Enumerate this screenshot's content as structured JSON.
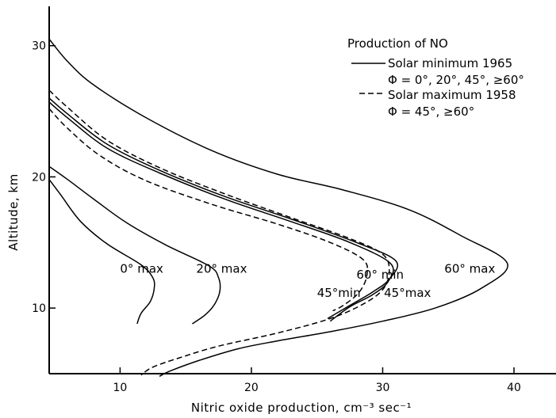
{
  "chart_data": {
    "type": "line",
    "title": "",
    "xlabel": "Nitric oxide production, cm⁻³ sec⁻¹",
    "ylabel": "Altitude,   km",
    "xlim": [
      4.6,
      43.2
    ],
    "ylim": [
      5,
      33
    ],
    "x_ticks": [
      10,
      20,
      30,
      40
    ],
    "y_ticks": [
      10,
      20,
      30
    ],
    "grid": false,
    "legend": {
      "position": "top-right",
      "title": "Production of NO",
      "entries": [
        {
          "style": "solid",
          "line1": "Solar minimum 1965",
          "line2": "Φ = 0°, 20°, 45°, ≥60°"
        },
        {
          "style": "dashed",
          "line1": "Solar maximum 1958",
          "line2": "Φ = 45°, ≥60°"
        }
      ]
    },
    "series": [
      {
        "id": "0max",
        "style": "solid",
        "label": "0° max",
        "label_at": [
          10.0,
          13.0
        ],
        "points": [
          [
            4.6,
            19.8
          ],
          [
            5.5,
            18.6
          ],
          [
            7.0,
            16.6
          ],
          [
            9.0,
            14.9
          ],
          [
            11.6,
            13.3
          ],
          [
            12.5,
            12.3
          ],
          [
            12.6,
            11.5
          ],
          [
            12.3,
            10.5
          ],
          [
            11.6,
            9.6
          ],
          [
            11.3,
            8.8
          ]
        ]
      },
      {
        "id": "20max",
        "style": "solid",
        "label": "20° max",
        "label_at": [
          15.8,
          13.0
        ],
        "points": [
          [
            4.6,
            20.8
          ],
          [
            6.0,
            19.8
          ],
          [
            8.0,
            18.3
          ],
          [
            10.5,
            16.5
          ],
          [
            13.5,
            14.8
          ],
          [
            16.8,
            13.2
          ],
          [
            17.5,
            12.3
          ],
          [
            17.6,
            11.3
          ],
          [
            17.2,
            10.3
          ],
          [
            16.5,
            9.5
          ],
          [
            15.5,
            8.8
          ]
        ]
      },
      {
        "id": "60min",
        "style": "solid",
        "label": "60° min",
        "label_at": [
          28.0,
          12.55
        ],
        "points": [
          [
            4.6,
            26.0
          ],
          [
            6.0,
            24.8
          ],
          [
            9.0,
            22.5
          ],
          [
            13.0,
            20.5
          ],
          [
            18.0,
            18.5
          ],
          [
            23.0,
            16.8
          ],
          [
            28.0,
            15.0
          ],
          [
            31.0,
            13.6
          ],
          [
            30.5,
            12.2
          ],
          [
            29.2,
            11.2
          ],
          [
            27.5,
            10.2
          ],
          [
            25.8,
            9.2
          ]
        ]
      },
      {
        "id": "45max",
        "style": "solid",
        "label": "45°max",
        "label_at": [
          30.1,
          11.15
        ],
        "points": [
          [
            4.6,
            25.7
          ],
          [
            6.0,
            24.5
          ],
          [
            9.0,
            22.2
          ],
          [
            13.0,
            20.3
          ],
          [
            18.0,
            18.3
          ],
          [
            23.0,
            16.6
          ],
          [
            27.5,
            15.0
          ],
          [
            30.6,
            13.4
          ],
          [
            30.4,
            12.0
          ],
          [
            29.2,
            11.0
          ],
          [
            27.5,
            10.1
          ],
          [
            26.0,
            9.0
          ]
        ]
      },
      {
        "id": "60max",
        "style": "solid",
        "label": "60° max",
        "label_at": [
          34.7,
          13.0
        ],
        "points": [
          [
            4.6,
            30.5
          ],
          [
            6.0,
            28.8
          ],
          [
            8.0,
            27.0
          ],
          [
            12.0,
            24.5
          ],
          [
            17.0,
            22.0
          ],
          [
            22.0,
            20.2
          ],
          [
            27.0,
            19.0
          ],
          [
            32.0,
            17.5
          ],
          [
            36.0,
            15.5
          ],
          [
            39.5,
            13.4
          ],
          [
            37.5,
            11.5
          ],
          [
            34.0,
            10.0
          ],
          [
            30.0,
            9.0
          ],
          [
            26.0,
            8.2
          ],
          [
            22.0,
            7.5
          ],
          [
            19.0,
            6.9
          ],
          [
            16.0,
            6.0
          ],
          [
            13.8,
            5.2
          ],
          [
            13.0,
            4.8
          ]
        ]
      },
      {
        "id": "d60",
        "style": "dashed",
        "points": [
          [
            4.6,
            26.6
          ],
          [
            6.0,
            25.3
          ],
          [
            9.0,
            22.8
          ],
          [
            13.0,
            20.7
          ],
          [
            18.0,
            18.7
          ],
          [
            23.0,
            16.9
          ],
          [
            27.5,
            15.3
          ],
          [
            30.0,
            14.1
          ],
          [
            30.5,
            12.8
          ],
          [
            30.0,
            11.4
          ],
          [
            28.5,
            10.3
          ],
          [
            26.0,
            9.2
          ],
          [
            22.0,
            8.1
          ],
          [
            17.5,
            7.1
          ],
          [
            14.5,
            6.2
          ],
          [
            12.5,
            5.5
          ],
          [
            11.6,
            4.9
          ]
        ]
      },
      {
        "id": "d45",
        "style": "dashed",
        "label": "45°min",
        "label_at": [
          25.0,
          11.15
        ],
        "points": [
          [
            4.6,
            25.2
          ],
          [
            6.0,
            23.7
          ],
          [
            8.5,
            21.6
          ],
          [
            12.0,
            19.7
          ],
          [
            17.0,
            17.9
          ],
          [
            22.0,
            16.4
          ],
          [
            26.0,
            15.0
          ],
          [
            28.5,
            13.7
          ],
          [
            28.8,
            12.5
          ],
          [
            28.2,
            11.2
          ],
          [
            27.0,
            10.2
          ],
          [
            26.2,
            9.8
          ]
        ]
      }
    ]
  }
}
